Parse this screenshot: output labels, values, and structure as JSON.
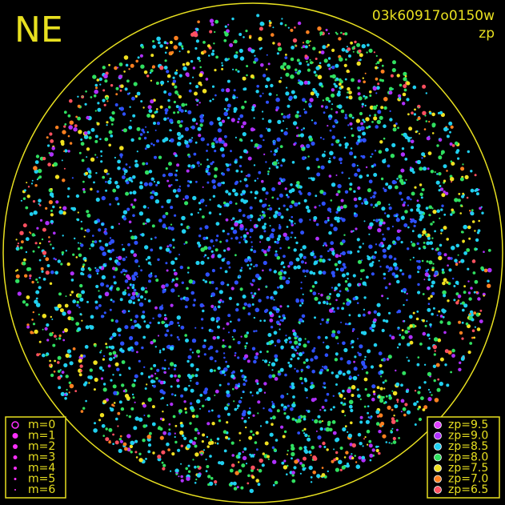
{
  "compass": "NE",
  "image_id": "03k60917o0150w",
  "mode": "zp",
  "magnitude_legend": [
    {
      "label": "m=0"
    },
    {
      "label": "m=1"
    },
    {
      "label": "m=2"
    },
    {
      "label": "m=3"
    },
    {
      "label": "m=4"
    },
    {
      "label": "m=5"
    },
    {
      "label": "m=6"
    }
  ],
  "zp_legend": [
    {
      "label": "zp=9.5",
      "color": "#e040ff"
    },
    {
      "label": "zp=9.0",
      "color": "#b030ff"
    },
    {
      "label": "zp=8.5",
      "color": "#20d0f0"
    },
    {
      "label": "zp=8.0",
      "color": "#30e060"
    },
    {
      "label": "zp=7.5",
      "color": "#f0e020"
    },
    {
      "label": "zp=7.0",
      "color": "#ff8020"
    },
    {
      "label": "zp=6.5",
      "color": "#ff5060"
    }
  ]
}
